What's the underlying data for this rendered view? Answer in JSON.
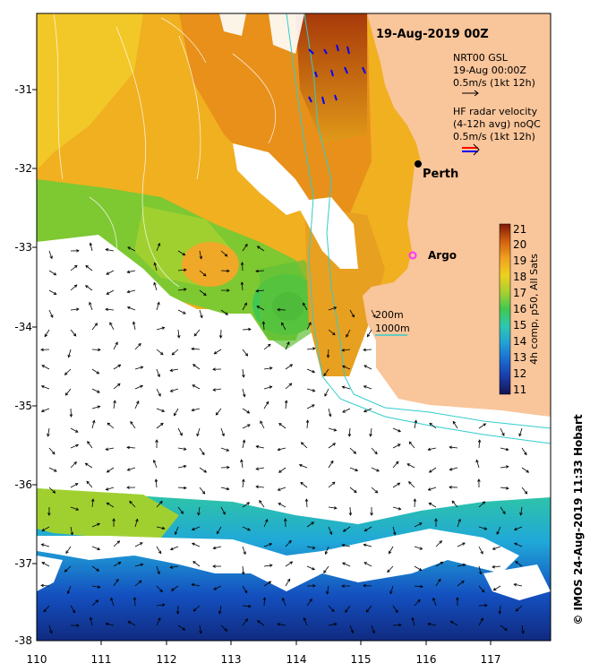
{
  "map": {
    "title": "19-Aug-2019 00Z",
    "x_ticks": [
      "110",
      "111",
      "112",
      "113",
      "114",
      "115",
      "116",
      "117"
    ],
    "y_ticks": [
      "-31",
      "-32",
      "-33",
      "-34",
      "-35",
      "-36",
      "-37",
      "-38"
    ],
    "legend": {
      "model_line1": "NRT00 GSL",
      "model_line2": "19-Aug 00:00Z",
      "model_scale": "0.5m/s (1kt 12h)",
      "radar_line1": "HF radar velocity",
      "radar_line2": "(4-12h avg) noQC",
      "radar_scale": "0.5m/s (1kt 12h)"
    },
    "places": {
      "perth": "Perth",
      "argo": "Argo"
    },
    "isobaths": {
      "label_200": "200m",
      "label_1000": "1000m",
      "color": "#33cccc"
    },
    "colorbar": {
      "ticks": [
        "21",
        "20",
        "19",
        "18",
        "17",
        "16",
        "15",
        "14",
        "13",
        "12",
        "11"
      ],
      "label": "4h comp, p50, All Sats",
      "range": [
        11,
        21
      ]
    },
    "credit": "© IMOS 24-Aug-2019 11:33 Hobart",
    "colors": {
      "land": "#f9c59a",
      "cloud": "#ffffff",
      "argo": "#ff33ff",
      "radar_red": "#ff0000",
      "radar_blue": "#0000ff"
    }
  }
}
